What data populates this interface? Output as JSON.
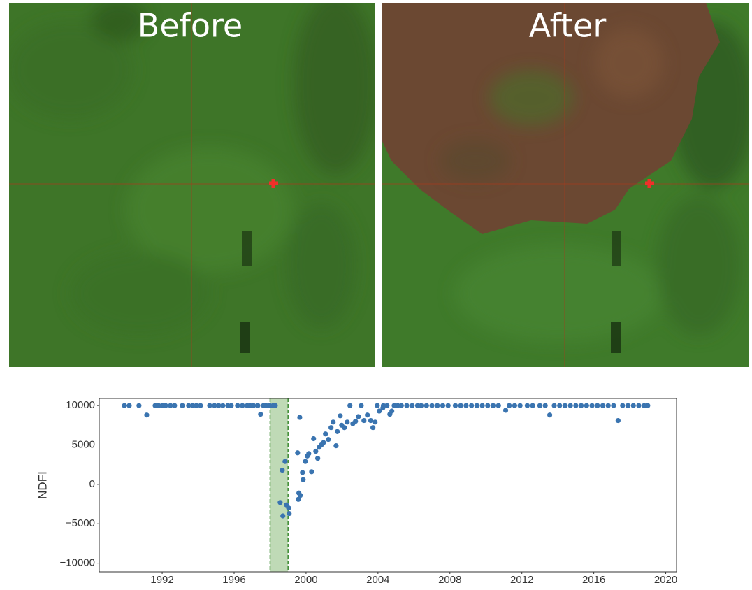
{
  "panels": [
    {
      "label": "Before"
    },
    {
      "label": "After"
    }
  ],
  "chart_data": {
    "type": "scatter",
    "ylabel": "NDFI",
    "color": "#3a74b0",
    "span": {
      "xlim": [
        1998,
        1999
      ],
      "color": "#7fb56e"
    },
    "xlim": [
      1988.5,
      2020.6
    ],
    "ylim": [
      -11100,
      10900
    ],
    "xticks": [
      1992,
      1996,
      2000,
      2004,
      2008,
      2012,
      2016,
      2020
    ],
    "yticks": [
      {
        "value": -10000,
        "label": "−10000"
      },
      {
        "value": -5000,
        "label": "−5000"
      },
      0,
      5000,
      10000
    ],
    "x": [
      1989.9,
      1990.17,
      1990.71,
      1991.14,
      1991.61,
      1991.8,
      1992.0,
      1992.19,
      1992.46,
      1992.69,
      1993.12,
      1993.47,
      1993.7,
      1993.9,
      1994.13,
      1994.64,
      1994.91,
      1995.14,
      1995.37,
      1995.65,
      1995.84,
      1996.19,
      1996.46,
      1996.73,
      1996.89,
      1997.08,
      1997.32,
      1997.47,
      1997.63,
      1997.78,
      1997.98,
      1998.17,
      1998.29,
      1998.56,
      1998.71,
      1998.68,
      1998.83,
      1998.91,
      1999.06,
      1999.03,
      1999.53,
      1999.65,
      1999.57,
      1999.6,
      1999.68,
      1999.8,
      1999.84,
      1999.96,
      2000.07,
      2000.15,
      2000.31,
      2000.42,
      2000.54,
      2000.65,
      2000.73,
      2000.85,
      2000.97,
      2001.08,
      2001.24,
      2001.39,
      2001.51,
      2001.67,
      2001.74,
      2001.9,
      2001.98,
      2002.13,
      2002.29,
      2002.44,
      2002.6,
      2002.75,
      2002.91,
      2003.07,
      2003.22,
      2003.41,
      2003.6,
      2003.72,
      2003.84,
      2003.96,
      2004.07,
      2004.27,
      2004.66,
      2004.77,
      2004.3,
      2004.5,
      2004.9,
      2005.1,
      2005.3,
      2005.6,
      2005.9,
      2006.2,
      2006.4,
      2006.7,
      2007.0,
      2007.3,
      2007.6,
      2007.9,
      2008.3,
      2008.6,
      2008.9,
      2009.2,
      2009.5,
      2009.8,
      2010.1,
      2010.4,
      2010.7,
      2011.1,
      2011.3,
      2011.6,
      2011.9,
      2012.3,
      2012.6,
      2013.0,
      2013.3,
      2013.55,
      2013.8,
      2014.1,
      2014.4,
      2014.7,
      2015.0,
      2015.3,
      2015.6,
      2015.9,
      2016.2,
      2016.5,
      2016.8,
      2017.1,
      2017.35,
      2017.6,
      2017.9,
      2018.2,
      2018.5,
      2018.8,
      2019.0
    ],
    "values": [
      10000,
      10000,
      10000,
      8800,
      10000,
      10000,
      10000,
      10000,
      10000,
      10000,
      10000,
      10000,
      10000,
      10000,
      10000,
      10000,
      10000,
      10000,
      10000,
      10000,
      10000,
      10000,
      10000,
      10000,
      10000,
      10000,
      10000,
      8900,
      10000,
      10000,
      10000,
      10000,
      10000,
      -2300,
      -4000,
      1800,
      2900,
      -2600,
      -3700,
      -3000,
      4000,
      8500,
      -1900,
      -1100,
      -1400,
      1500,
      600,
      2900,
      3600,
      3900,
      1600,
      5800,
      4200,
      3300,
      4700,
      5000,
      5300,
      6400,
      5700,
      7200,
      7900,
      4900,
      6700,
      8700,
      7500,
      7200,
      7900,
      10000,
      7700,
      8000,
      8600,
      10000,
      8100,
      8800,
      8100,
      7200,
      7900,
      10000,
      9300,
      9700,
      8900,
      9300,
      10000,
      10000,
      10000,
      10000,
      10000,
      10000,
      10000,
      10000,
      10000,
      10000,
      10000,
      10000,
      10000,
      10000,
      10000,
      10000,
      10000,
      10000,
      10000,
      10000,
      10000,
      10000,
      10000,
      9400,
      10000,
      10000,
      10000,
      10000,
      10000,
      10000,
      10000,
      8800,
      10000,
      10000,
      10000,
      10000,
      10000,
      10000,
      10000,
      10000,
      10000,
      10000,
      10000,
      10000,
      8100,
      10000,
      10000,
      10000,
      10000,
      10000,
      10000
    ]
  }
}
